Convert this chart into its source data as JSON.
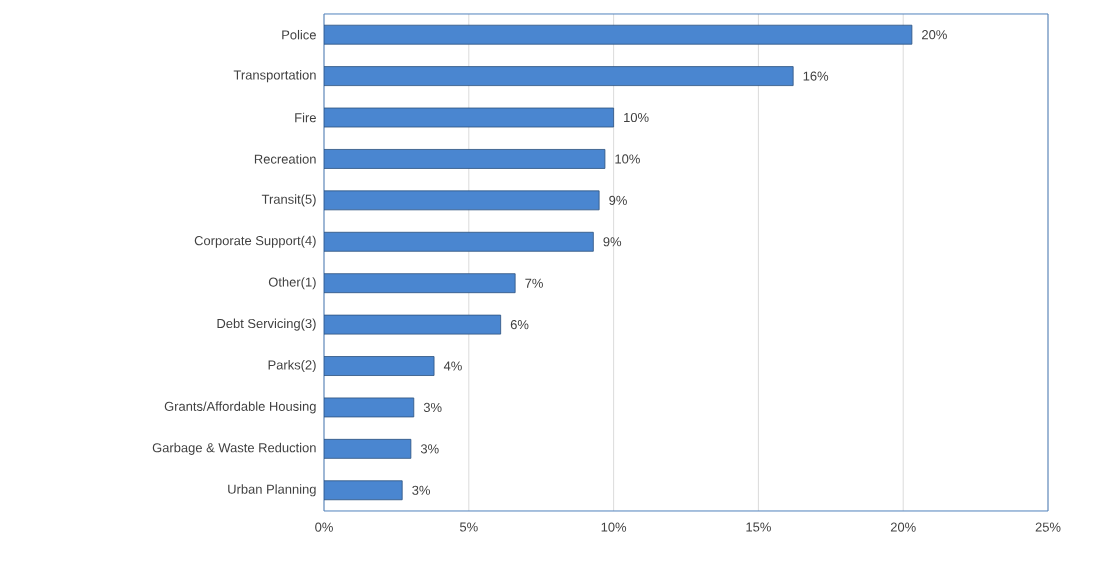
{
  "chart_data": {
    "type": "bar",
    "orientation": "horizontal",
    "categories": [
      "Police",
      "Transportation",
      "Fire",
      "Recreation",
      "Transit(5)",
      "Corporate Support(4)",
      "Other(1)",
      "Debt Servicing(3)",
      "Parks(2)",
      "Grants/Affordable Housing",
      "Garbage & Waste Reduction",
      "Urban Planning"
    ],
    "values": [
      20.3,
      16.2,
      10.0,
      9.7,
      9.5,
      9.3,
      6.6,
      6.1,
      3.8,
      3.1,
      3.0,
      2.7
    ],
    "value_labels": [
      "20%",
      "16%",
      "10%",
      "10%",
      "9%",
      "9%",
      "7%",
      "6%",
      "4%",
      "3%",
      "3%",
      "3%"
    ],
    "color": "#4a86d0",
    "xlim": [
      0,
      25
    ],
    "xticks": [
      {
        "value": 0,
        "label": "0%"
      },
      {
        "value": 5,
        "label": "5%"
      },
      {
        "value": 10,
        "label": "10%"
      },
      {
        "value": 15,
        "label": "15%"
      },
      {
        "value": 20,
        "label": "20%"
      },
      {
        "value": 25,
        "label": "25%"
      }
    ],
    "grid": "x"
  }
}
